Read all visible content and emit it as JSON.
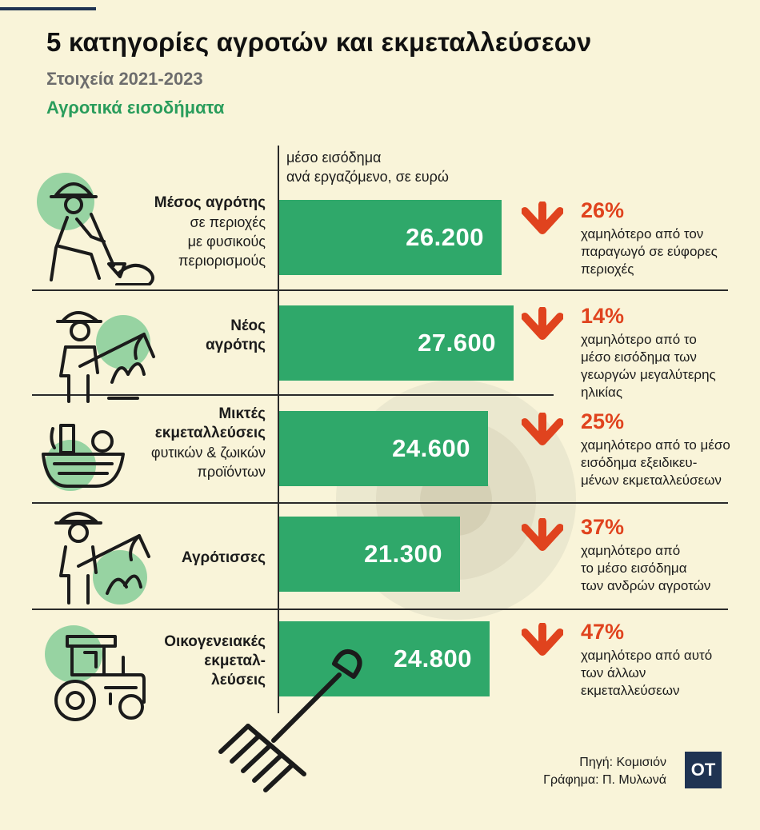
{
  "header": {
    "title": "5 κατηγορίες αγροτών και εκμεταλλεύσεων",
    "subtitle": "Στοιχεία 2021-2023",
    "section": "Αγροτικά εισοδήματα"
  },
  "colors": {
    "bar": "#2fa86a",
    "accent": "#e0431e",
    "subtitle": "#6d6d6d",
    "section": "#2a9d5c",
    "logo_bg": "#1f3352"
  },
  "chart_data": {
    "type": "bar",
    "orientation": "horizontal",
    "unit_label_line1": "μέσο εισόδημα",
    "unit_label_line2": "ανά εργαζόμενο, σε ευρώ",
    "categories": [
      {
        "lines": [
          "Μέσος αγρότης",
          "σε περιοχές",
          "με φυσικούς",
          "περιορισμούς"
        ],
        "bold_lines": 1
      },
      {
        "lines": [
          "Νέος",
          "αγρότης"
        ],
        "bold_lines": 2
      },
      {
        "lines": [
          "Μικτές",
          "εκμεταλλεύσεις",
          "φυτικών & ζωικών",
          "προϊόντων"
        ],
        "bold_lines": 2
      },
      {
        "lines": [
          "Αγρότισσες"
        ],
        "bold_lines": 1
      },
      {
        "lines": [
          "Οικογενειακές",
          "εκμεταλ-",
          "λεύσεις"
        ],
        "bold_lines": 3
      }
    ],
    "values": [
      26200,
      27600,
      24600,
      21300,
      24800
    ],
    "value_labels": [
      "26.200",
      "27.600",
      "24.600",
      "21.300",
      "24.800"
    ],
    "comparisons": [
      {
        "pct": "26%",
        "lines": [
          "χαμηλότερο από τον",
          "παραγωγό σε εύφορες",
          "περιοχές"
        ]
      },
      {
        "pct": "14%",
        "lines": [
          "χαμηλότερο από το",
          "μέσο εισόδημα των",
          "γεωργών μεγαλύτερης",
          "ηλικίας"
        ]
      },
      {
        "pct": "25%",
        "lines": [
          "χαμηλότερο από το μέσο",
          "εισόδημα  εξειδικευ-",
          "μένων εκμεταλλεύσεων"
        ]
      },
      {
        "pct": "37%",
        "lines": [
          "χαμηλότερο από",
          "το μέσο εισόδημα",
          "των ανδρών αγροτών"
        ]
      },
      {
        "pct": "47%",
        "lines": [
          "χαμηλότερο από αυτό",
          "των άλλων",
          "εκμεταλλεύσεων"
        ]
      }
    ]
  },
  "icons": [
    "farmer-shovel-icon",
    "young-farmer-icon",
    "basket-icon",
    "woman-farmer-icon",
    "tractor-icon",
    "pitchfork-icon",
    "arrow-down-icon"
  ],
  "footer": {
    "source": "Πηγή: Κομισιόν",
    "graphic": "Γράφημα: Π. Μυλωνά",
    "logo": "OT"
  }
}
